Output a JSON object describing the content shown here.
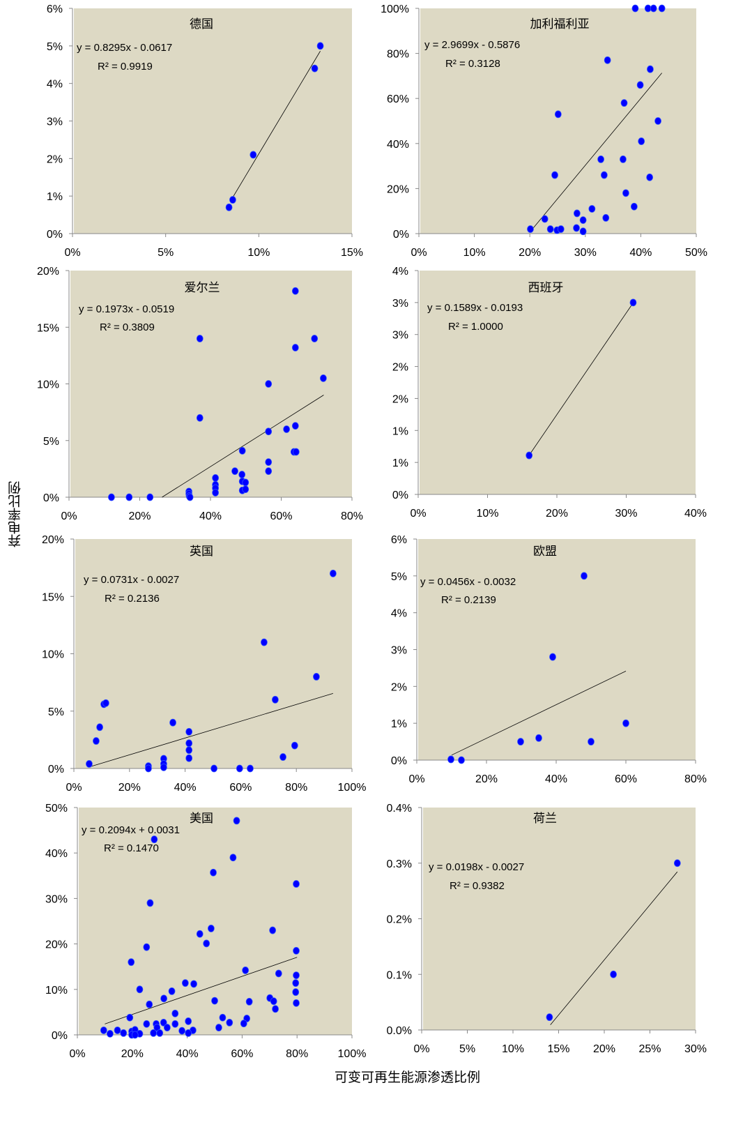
{
  "chart_data": [
    {
      "type": "scatter",
      "title": "德国",
      "xlim": [
        0,
        15
      ],
      "ylim": [
        0,
        6
      ],
      "xticks": [
        0,
        5,
        10,
        15
      ],
      "xtick_labels": [
        "0%",
        "5%",
        "10%",
        "15%"
      ],
      "yticks": [
        0,
        1,
        2,
        3,
        4,
        5,
        6
      ],
      "ytick_labels": [
        "0%",
        "1%",
        "2%",
        "3%",
        "4%",
        "5%",
        "6%"
      ],
      "equation": "y = 0.8295x - 0.0617",
      "r2": "R² = 0.9919",
      "trend": {
        "slope": 0.8295,
        "intercept": -0.0617,
        "x_range": [
          8.6,
          13.3
        ]
      },
      "points": [
        [
          8.4,
          0.7
        ],
        [
          8.6,
          0.9
        ],
        [
          9.7,
          2.1
        ],
        [
          13.0,
          4.4
        ],
        [
          13.3,
          5.0
        ]
      ]
    },
    {
      "type": "scatter",
      "title": "加利福利亚",
      "xlim": [
        0,
        50
      ],
      "ylim": [
        0,
        100
      ],
      "xticks": [
        0,
        10,
        20,
        30,
        40,
        50
      ],
      "xtick_labels": [
        "0%",
        "10%",
        "20%",
        "30%",
        "40%",
        "50%"
      ],
      "yticks": [
        0,
        20,
        40,
        60,
        80,
        100
      ],
      "ytick_labels": [
        "0%",
        "20%",
        "40%",
        "60%",
        "80%",
        "100%"
      ],
      "equation": "y = 2.9699x - 0.5876",
      "r2": "R² = 0.3128",
      "trend": {
        "slope": 2.9699,
        "intercept": -0.5876,
        "x_range": [
          20.5,
          43.8
        ]
      },
      "points": [
        [
          39,
          100
        ],
        [
          41.3,
          100
        ],
        [
          42.3,
          100
        ],
        [
          43.8,
          100
        ],
        [
          34,
          77
        ],
        [
          41.7,
          73
        ],
        [
          39.9,
          66
        ],
        [
          37,
          58
        ],
        [
          25.1,
          53
        ],
        [
          43.1,
          50
        ],
        [
          40.1,
          41
        ],
        [
          32.8,
          33
        ],
        [
          36.8,
          33
        ],
        [
          24.5,
          26
        ],
        [
          33.4,
          26
        ],
        [
          41.6,
          25
        ],
        [
          37.3,
          18
        ],
        [
          38.8,
          12
        ],
        [
          31.2,
          11
        ],
        [
          28.5,
          9
        ],
        [
          22.7,
          6.5
        ],
        [
          29.6,
          6
        ],
        [
          33.7,
          7
        ],
        [
          20.1,
          2
        ],
        [
          23.7,
          2
        ],
        [
          24.9,
          1.5
        ],
        [
          25.6,
          2
        ],
        [
          28.4,
          2.5
        ],
        [
          29.6,
          1
        ]
      ]
    },
    {
      "type": "scatter",
      "title": "爱尔兰",
      "xlim": [
        0,
        80
      ],
      "ylim": [
        0,
        20
      ],
      "xticks": [
        0,
        20,
        40,
        60,
        80
      ],
      "xtick_labels": [
        "0%",
        "20%",
        "40%",
        "60%",
        "80%"
      ],
      "yticks": [
        0,
        5,
        10,
        15,
        20
      ],
      "ytick_labels": [
        "0%",
        "5%",
        "10%",
        "15%",
        "20%"
      ],
      "equation": "y = 0.1973x - 0.0519",
      "r2": "R² = 0.3809",
      "trend": {
        "slope": 0.1973,
        "intercept": -0.0519,
        "x_range": [
          26.3,
          72
        ]
      },
      "points": [
        [
          12,
          0
        ],
        [
          17,
          0
        ],
        [
          22.9,
          0
        ],
        [
          33.9,
          0.5
        ],
        [
          33.9,
          0.3
        ],
        [
          34,
          0.1
        ],
        [
          34.2,
          0
        ],
        [
          37,
          14
        ],
        [
          37,
          7
        ],
        [
          41.4,
          1.7
        ],
        [
          41.4,
          1.1
        ],
        [
          41.4,
          0.8
        ],
        [
          41.4,
          0.4
        ],
        [
          46.9,
          2.3
        ],
        [
          49,
          4.1
        ],
        [
          48.9,
          2
        ],
        [
          49,
          1.4
        ],
        [
          49,
          0.6
        ],
        [
          49.9,
          1.3
        ],
        [
          49.9,
          0.7
        ],
        [
          56.4,
          10
        ],
        [
          56.4,
          5.8
        ],
        [
          56.4,
          3.1
        ],
        [
          56.4,
          2.3
        ],
        [
          61.5,
          6
        ],
        [
          64,
          18.2
        ],
        [
          64,
          13.2
        ],
        [
          64,
          6.3
        ],
        [
          63.6,
          4
        ],
        [
          64.2,
          4
        ],
        [
          69.4,
          14
        ],
        [
          71.9,
          10.5
        ]
      ]
    },
    {
      "type": "scatter",
      "title": "西班牙",
      "xlim": [
        0,
        40
      ],
      "ylim": [
        0,
        3.5
      ],
      "xticks": [
        0,
        10,
        20,
        30,
        40
      ],
      "xtick_labels": [
        "0%",
        "10%",
        "20%",
        "30%",
        "40%"
      ],
      "yticks": [
        0,
        0.5,
        1,
        1.5,
        2,
        2.5,
        3,
        3.5
      ],
      "ytick_labels": [
        "0%",
        "1%",
        "1%",
        "2%",
        "2%",
        "3%",
        "3%",
        "4%"
      ],
      "equation": "y = 0.1589x - 0.0193",
      "r2": "R² = 1.0000",
      "trend": {
        "slope": 0.1589,
        "intercept": -0.0193,
        "x_range": [
          16,
          31
        ]
      },
      "points": [
        [
          16,
          0.61
        ],
        [
          31,
          3.0
        ]
      ]
    },
    {
      "type": "scatter",
      "title": "英国",
      "xlim": [
        0,
        100
      ],
      "ylim": [
        0,
        20
      ],
      "xticks": [
        0,
        20,
        40,
        60,
        80,
        100
      ],
      "xtick_labels": [
        "0%",
        "20%",
        "40%",
        "60%",
        "80%",
        "100%"
      ],
      "yticks": [
        0,
        5,
        10,
        15,
        20
      ],
      "ytick_labels": [
        "0%",
        "5%",
        "10%",
        "15%",
        "20%"
      ],
      "equation": "y = 0.0731x - 0.0027",
      "r2": "R² = 0.2136",
      "trend": {
        "slope": 0.0731,
        "intercept": -0.0027,
        "x_range": [
          6,
          93.2
        ]
      },
      "points": [
        [
          5.5,
          0.4
        ],
        [
          8,
          2.4
        ],
        [
          9.3,
          3.6
        ],
        [
          10.8,
          5.6
        ],
        [
          11.5,
          5.7
        ],
        [
          26.8,
          0.2
        ],
        [
          26.8,
          0
        ],
        [
          32.3,
          0.85
        ],
        [
          32.3,
          0.4
        ],
        [
          32.3,
          0.1
        ],
        [
          35.6,
          4
        ],
        [
          41.4,
          3.2
        ],
        [
          41.4,
          2.2
        ],
        [
          41.4,
          1.6
        ],
        [
          41.4,
          0.9
        ],
        [
          50.4,
          0
        ],
        [
          59.6,
          0
        ],
        [
          63.4,
          0
        ],
        [
          68.4,
          11
        ],
        [
          72.4,
          6
        ],
        [
          75.2,
          1
        ],
        [
          79.4,
          2
        ],
        [
          87.2,
          8
        ],
        [
          93.2,
          17
        ]
      ]
    },
    {
      "type": "scatter",
      "title": "欧盟",
      "xlim": [
        0,
        80
      ],
      "ylim": [
        0,
        6
      ],
      "xticks": [
        0,
        20,
        40,
        60,
        80
      ],
      "xtick_labels": [
        "0%",
        "20%",
        "40%",
        "60%",
        "80%"
      ],
      "yticks": [
        0,
        1,
        2,
        3,
        4,
        5,
        6
      ],
      "ytick_labels": [
        "0%",
        "1%",
        "2%",
        "3%",
        "4%",
        "5%",
        "6%"
      ],
      "equation": "y = 0.0456x - 0.0032",
      "r2": "R² = 0.2139",
      "trend": {
        "slope": 0.0456,
        "intercept": -0.0032,
        "x_range": [
          10,
          60
        ]
      },
      "points": [
        [
          9.8,
          0.02
        ],
        [
          12.8,
          0
        ],
        [
          29.8,
          0.5
        ],
        [
          35,
          0.6
        ],
        [
          39,
          2.8
        ],
        [
          48,
          5.0
        ],
        [
          50,
          0.5
        ],
        [
          60,
          1.0
        ]
      ]
    },
    {
      "type": "scatter",
      "title": "美国",
      "xlim": [
        0,
        100
      ],
      "ylim": [
        0,
        50
      ],
      "xticks": [
        0,
        20,
        40,
        60,
        80,
        100
      ],
      "xtick_labels": [
        "0%",
        "20%",
        "40%",
        "60%",
        "80%",
        "100%"
      ],
      "yticks": [
        0,
        10,
        20,
        30,
        40,
        50
      ],
      "ytick_labels": [
        "0%",
        "10%",
        "20%",
        "30%",
        "40%",
        "50%"
      ],
      "equation": "y = 0.2094x + 0.0031",
      "r2": "R² = 0.1470",
      "trend": {
        "slope": 0.2094,
        "intercept": 0.0031,
        "x_range": [
          10,
          80
        ]
      },
      "points": [
        [
          58,
          47.1
        ],
        [
          28,
          43
        ],
        [
          56.7,
          39
        ],
        [
          49.5,
          35.7
        ],
        [
          79.7,
          33.2
        ],
        [
          26.5,
          29
        ],
        [
          48.7,
          23.4
        ],
        [
          71.1,
          23
        ],
        [
          44.6,
          22.2
        ],
        [
          47,
          20.1
        ],
        [
          25.2,
          19.3
        ],
        [
          79.7,
          18.5
        ],
        [
          19.6,
          16
        ],
        [
          61.2,
          14.2
        ],
        [
          73.3,
          13.5
        ],
        [
          79.7,
          13.1
        ],
        [
          79.5,
          11.4
        ],
        [
          39.3,
          11.4
        ],
        [
          42.4,
          11.2
        ],
        [
          22.7,
          10
        ],
        [
          34.4,
          9.6
        ],
        [
          79.5,
          9.4
        ],
        [
          31.5,
          8
        ],
        [
          50,
          7.5
        ],
        [
          70.1,
          8.1
        ],
        [
          71.5,
          7.4
        ],
        [
          62.6,
          7.3
        ],
        [
          79.7,
          7
        ],
        [
          26.2,
          6.7
        ],
        [
          72.1,
          5.7
        ],
        [
          35.6,
          4.7
        ],
        [
          19.1,
          3.8
        ],
        [
          52.9,
          3.8
        ],
        [
          61.7,
          3.6
        ],
        [
          40.4,
          3
        ],
        [
          55.4,
          2.7
        ],
        [
          60.6,
          2.5
        ],
        [
          31.4,
          2.7
        ],
        [
          25.2,
          2.4
        ],
        [
          28.7,
          2.4
        ],
        [
          35.6,
          2.4
        ],
        [
          29,
          1.6
        ],
        [
          32.7,
          1.6
        ],
        [
          51.5,
          1.6
        ],
        [
          9.6,
          1
        ],
        [
          14.6,
          1
        ],
        [
          38.1,
          0.9
        ],
        [
          42.1,
          1
        ],
        [
          16.8,
          0.4
        ],
        [
          11.9,
          0.25
        ],
        [
          19.8,
          0.75
        ],
        [
          21,
          1.1
        ],
        [
          22.7,
          0.25
        ],
        [
          19.8,
          0
        ],
        [
          21,
          0
        ],
        [
          27.7,
          0.4
        ],
        [
          30,
          0.4
        ],
        [
          40.4,
          0.4
        ]
      ]
    },
    {
      "type": "scatter",
      "title": "荷兰",
      "xlim": [
        0,
        30
      ],
      "ylim": [
        0,
        0.4
      ],
      "xticks": [
        0,
        5,
        10,
        15,
        20,
        25,
        30
      ],
      "xtick_labels": [
        "0%",
        "5%",
        "10%",
        "15%",
        "20%",
        "25%",
        "30%"
      ],
      "yticks": [
        0,
        0.1,
        0.2,
        0.3,
        0.4
      ],
      "ytick_labels": [
        "0.0%",
        "0.1%",
        "0.2%",
        "0.3%",
        "0.4%"
      ],
      "equation": "y = 0.0198x - 0.0027",
      "r2": "R² = 0.9382",
      "trend": {
        "slope": 0.0198,
        "intercept": -0.0027,
        "x_range": [
          14.1,
          28
        ]
      },
      "points": [
        [
          14,
          0.023
        ],
        [
          21,
          0.1
        ],
        [
          28,
          0.3
        ]
      ]
    }
  ],
  "ylabel": "弃电率比例",
  "xlabel": "可变可再生能源渗透比例",
  "colors": {
    "plot_bg": "#ddd9c4",
    "point": "#0000ff",
    "trendline": "#000000"
  }
}
